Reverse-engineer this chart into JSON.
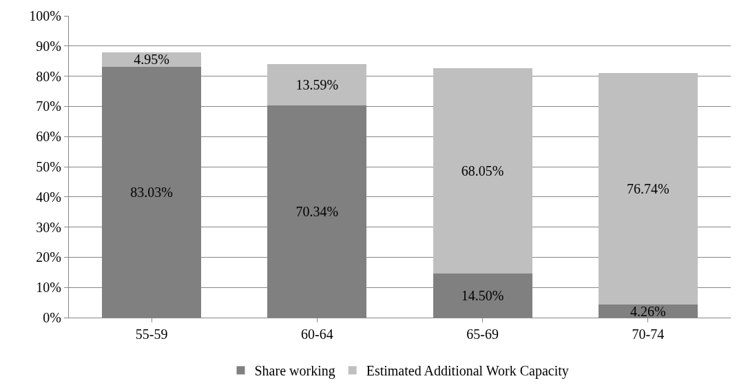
{
  "chart_data": {
    "type": "bar",
    "stacked": true,
    "categories": [
      "55-59",
      "60-64",
      "65-69",
      "70-74"
    ],
    "series": [
      {
        "name": "Share working",
        "color": "#808080",
        "values": [
          83.03,
          70.34,
          14.5,
          4.26
        ],
        "value_labels": [
          "83.03%",
          "70.34%",
          "14.50%",
          "4.26%"
        ]
      },
      {
        "name": "Estimated Additional Work Capacity",
        "color": "#bfbfbf",
        "values": [
          4.95,
          13.59,
          68.05,
          76.74
        ],
        "value_labels": [
          "4.95%",
          "13.59%",
          "68.05%",
          "76.74%"
        ]
      }
    ],
    "ylim": [
      0,
      100
    ],
    "yticks": [
      {
        "value": 0,
        "label": "0%"
      },
      {
        "value": 10,
        "label": "10%"
      },
      {
        "value": 20,
        "label": "20%"
      },
      {
        "value": 30,
        "label": "30%"
      },
      {
        "value": 40,
        "label": "40%"
      },
      {
        "value": 50,
        "label": "50%"
      },
      {
        "value": 60,
        "label": "60%"
      },
      {
        "value": 70,
        "label": "70%"
      },
      {
        "value": 80,
        "label": "80%"
      },
      {
        "value": 90,
        "label": "90%"
      },
      {
        "value": 100,
        "label": "100%"
      }
    ],
    "grid": "y",
    "legend": "bottom"
  }
}
